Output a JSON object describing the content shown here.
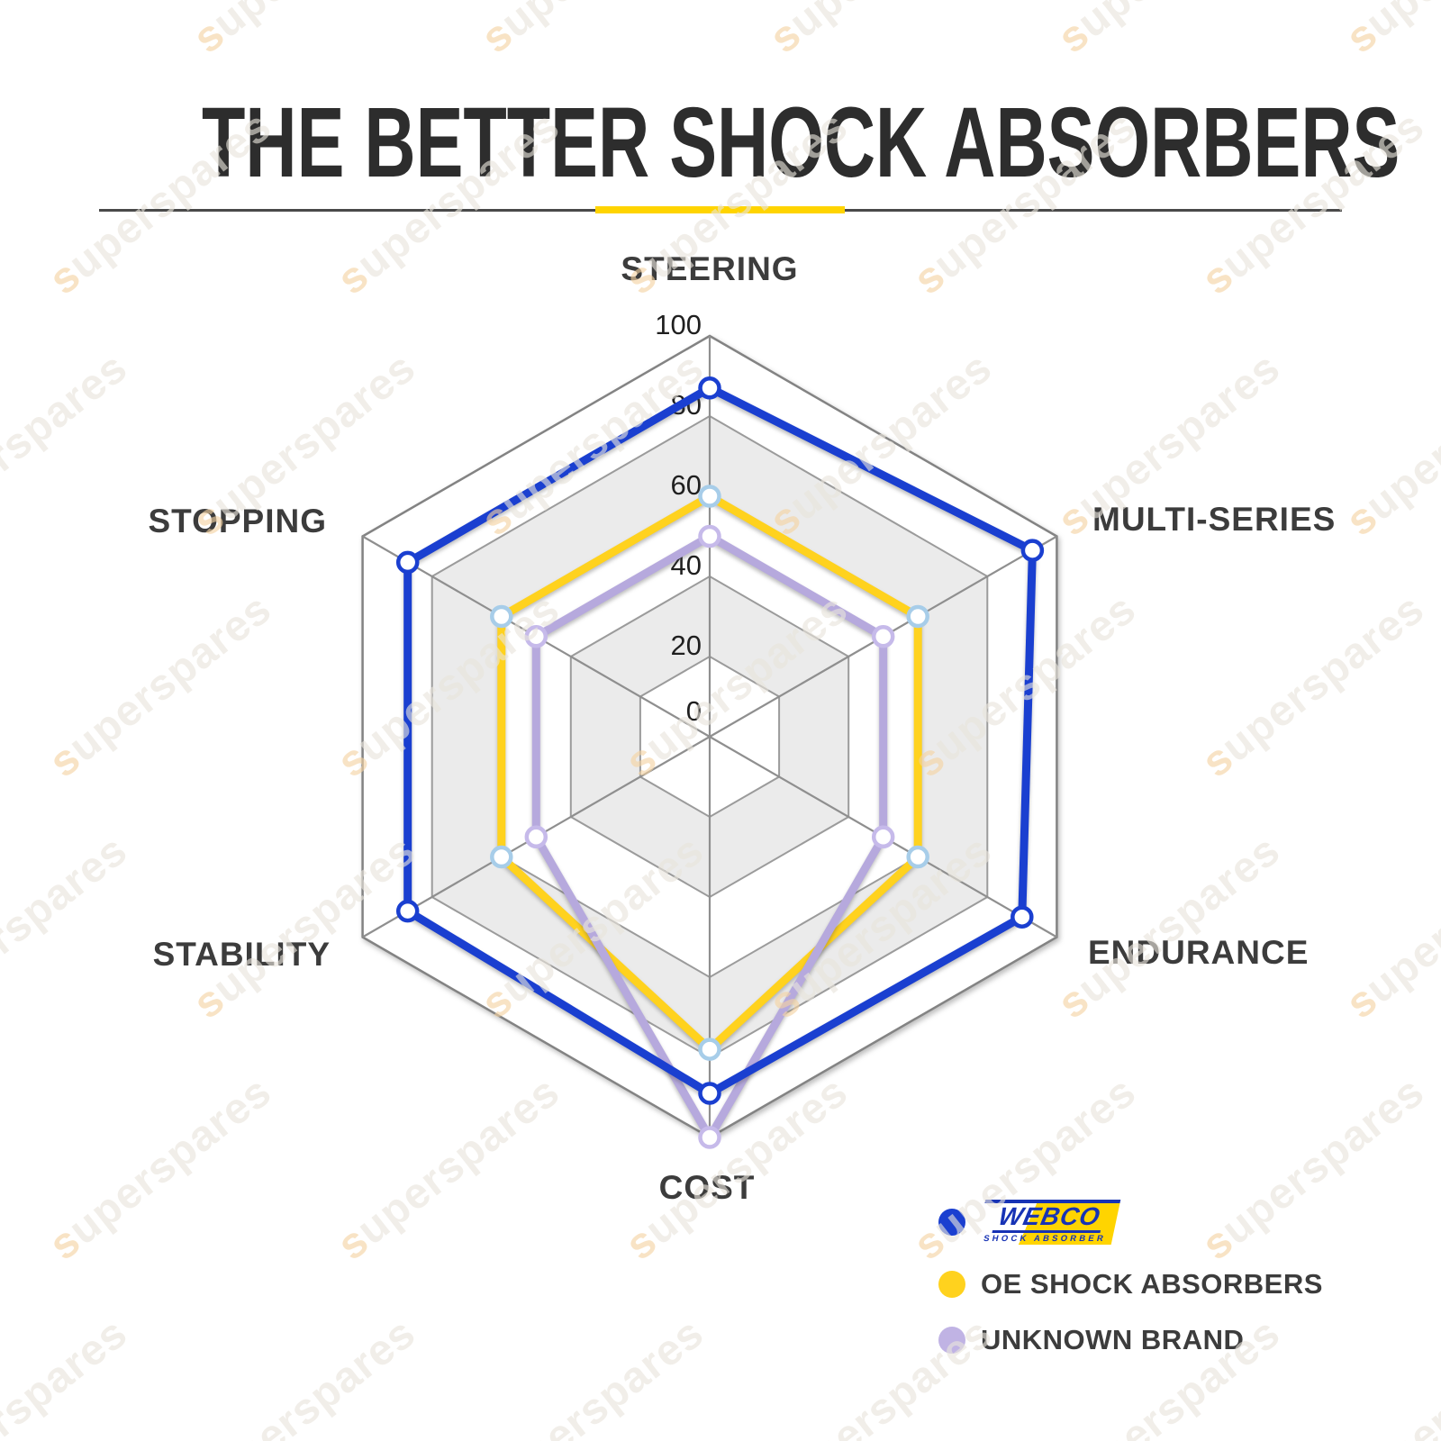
{
  "page": {
    "title": "THE BETTER SHOCK ABSORBERS"
  },
  "watermark": {
    "text": "superspares"
  },
  "chart_data": {
    "type": "radar",
    "title": "THE BETTER SHOCK ABSORBERS",
    "categories": [
      "STEERING",
      "MULTI-SERIES",
      "ENDURANCE",
      "COST",
      "STABILITY",
      "STOPPING"
    ],
    "r_axis": {
      "min": 0,
      "max": 100,
      "tick_interval": 20,
      "tick_labels": [
        "0",
        "20",
        "40",
        "60",
        "80",
        "100"
      ]
    },
    "series": [
      {
        "name": "WEBCO SHOCK ABSORBER",
        "color": "#1a3fd0",
        "marker_color": "#1a3fd0",
        "z": 2,
        "values": [
          87,
          93,
          90,
          89,
          87,
          87
        ]
      },
      {
        "name": "OE SHOCK ABSORBERS",
        "color": "#ffd21e",
        "marker_color": "#a7cde9",
        "z": 0,
        "values": [
          60,
          60,
          60,
          78,
          60,
          60
        ]
      },
      {
        "name": "UNKNOWN BRAND",
        "color": "#b6a9dd",
        "marker_color": "#c6baea",
        "z": 1,
        "values": [
          50,
          50,
          50,
          100,
          50,
          50
        ]
      }
    ],
    "grid": {
      "ring_fill_alt": "#ebebeb",
      "ring_fill": "#ffffff",
      "line_color": "#8f8f8f"
    },
    "legend_position": "bottom-right"
  },
  "legend": {
    "items": [
      {
        "swatch_color": "#1a3fd0",
        "type": "logo",
        "logo_text": "WEBCO",
        "logo_subtext": "SHOCK ABSORBER"
      },
      {
        "swatch_color": "#ffd21e",
        "type": "text",
        "label": "OE SHOCK ABSORBERS"
      },
      {
        "swatch_color": "#c0b3e4",
        "type": "text",
        "label": "UNKNOWN BRAND"
      }
    ]
  }
}
